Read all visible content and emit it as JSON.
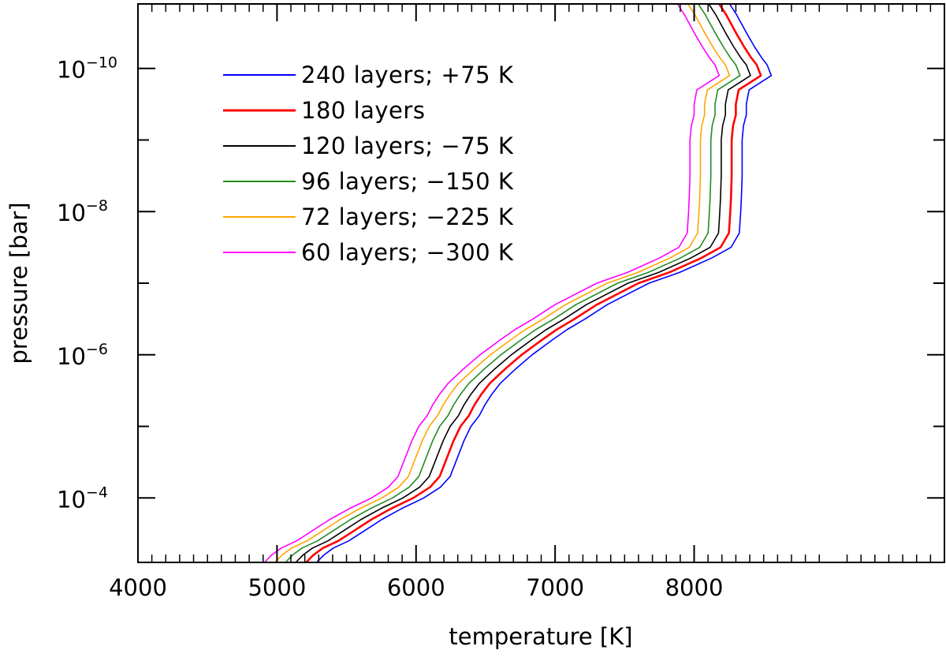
{
  "chart_data": {
    "type": "line",
    "title": "",
    "xlabel": "temperature [K]",
    "ylabel": "pressure [bar]",
    "xlim": [
      4000,
      9800
    ],
    "ylim_log10": [
      -3.1,
      -10.9
    ],
    "x_scale": "linear",
    "y_scale": "log",
    "y_inverted": true,
    "legend_position": "top-left",
    "x_ticks": [
      {
        "value": 4000,
        "label": "4000"
      },
      {
        "value": 5000,
        "label": "5000"
      },
      {
        "value": 6000,
        "label": "6000"
      },
      {
        "value": 7000,
        "label": "7000"
      },
      {
        "value": 8000,
        "label": "8000"
      }
    ],
    "y_ticks": [
      {
        "exp": -10,
        "base": "10",
        "sup": "−10"
      },
      {
        "exp": -8,
        "base": "10",
        "sup": "−8"
      },
      {
        "exp": -6,
        "base": "10",
        "sup": "−6"
      },
      {
        "exp": -4,
        "base": "10",
        "sup": "−4"
      }
    ],
    "base_profile": {
      "name": "180 layers",
      "log10_p": [
        -10.9,
        -10.75,
        -10.5,
        -10.3,
        -10.15,
        -10.05,
        -9.9,
        -9.7,
        -9.5,
        -9.35,
        -9.2,
        -9.0,
        -8.5,
        -8.2,
        -8.0,
        -7.7,
        -7.5,
        -7.35,
        -7.15,
        -7.0,
        -6.85,
        -6.7,
        -6.5,
        -6.35,
        -6.2,
        -6.0,
        -5.8,
        -5.6,
        -5.45,
        -5.3,
        -5.15,
        -5.0,
        -4.8,
        -4.6,
        -4.3,
        -4.15,
        -4.0,
        -3.85,
        -3.7,
        -3.55,
        -3.4,
        -3.3,
        -3.2,
        -3.1
      ],
      "temp_K": [
        8180,
        8230,
        8300,
        8360,
        8410,
        8450,
        8480,
        8320,
        8300,
        8300,
        8280,
        8270,
        8270,
        8265,
        8260,
        8250,
        8190,
        8050,
        7820,
        7600,
        7450,
        7300,
        7140,
        7010,
        6900,
        6760,
        6640,
        6530,
        6470,
        6420,
        6380,
        6320,
        6270,
        6230,
        6170,
        6100,
        5980,
        5820,
        5680,
        5560,
        5440,
        5330,
        5260,
        5210
      ]
    },
    "series": [
      {
        "name": "240 layers; +75 K",
        "label": "240 layers; +75 K",
        "offset_K": 75,
        "color": "#0000ff"
      },
      {
        "name": "180 layers",
        "label": "180 layers",
        "offset_K": 0,
        "color": "#ff0000"
      },
      {
        "name": "120 layers; −75 K",
        "label": "120 layers; −75 K",
        "offset_K": -75,
        "color": "#000000"
      },
      {
        "name": "96 layers; −150 K",
        "label": "96 layers; −150 K",
        "offset_K": -150,
        "color": "#228b22"
      },
      {
        "name": "72 layers; −225 K",
        "label": "72 layers; −225 K",
        "offset_K": -225,
        "color": "#ffa500"
      },
      {
        "name": "60 layers; −300 K",
        "label": "60 layers; −300 K",
        "offset_K": -300,
        "color": "#ff00ff"
      }
    ]
  }
}
